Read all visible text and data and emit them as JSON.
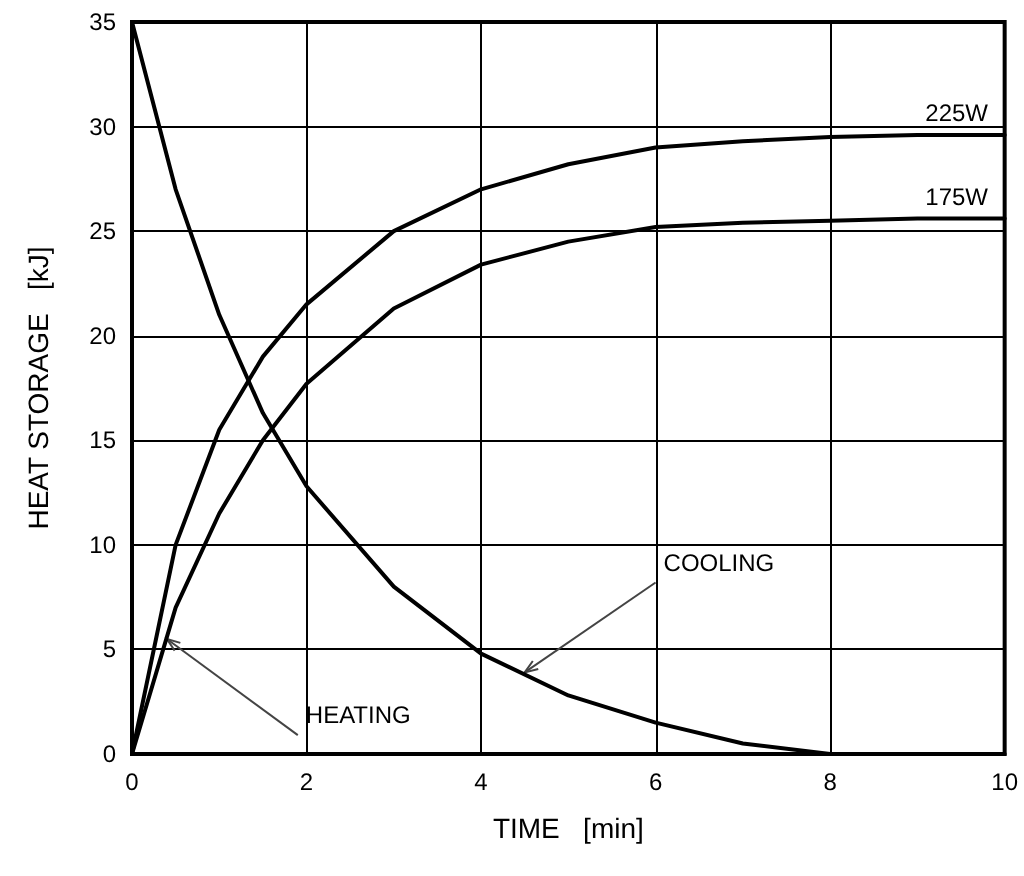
{
  "chart_data": {
    "type": "line",
    "xlabel": "TIME   [min]",
    "ylabel": "HEAT STORAGE   [kJ]",
    "x": [
      0,
      0.5,
      1,
      1.5,
      2,
      3,
      4,
      5,
      6,
      7,
      8,
      9,
      10
    ],
    "series": [
      {
        "name": "225W",
        "color": "#000000",
        "values": [
          0,
          10,
          15.5,
          19,
          21.5,
          25,
          27,
          28.2,
          29,
          29.3,
          29.5,
          29.6,
          29.6
        ]
      },
      {
        "name": "175W",
        "color": "#000000",
        "values": [
          0,
          7,
          11.5,
          15,
          17.7,
          21.3,
          23.4,
          24.5,
          25.2,
          25.4,
          25.5,
          25.6,
          25.6
        ]
      },
      {
        "color": "#000000",
        "x": [
          0,
          0.5,
          1,
          1.5,
          2,
          3,
          4,
          5,
          6,
          7,
          8
        ],
        "values": [
          35,
          27,
          21,
          16.3,
          12.8,
          8,
          4.8,
          2.8,
          1.5,
          0.5,
          0
        ]
      }
    ],
    "annotations": [
      {
        "text": "HEATING",
        "x": 0.4,
        "y": 5.5
      },
      {
        "text": "COOLING",
        "x": 4.5,
        "y": 3.9
      }
    ],
    "xlim": [
      0,
      10
    ],
    "xticks": [
      0,
      2,
      4,
      6,
      8,
      10
    ],
    "ylim": [
      0,
      35
    ],
    "yticks": [
      0,
      5,
      10,
      15,
      20,
      25,
      30,
      35
    ],
    "grid": true,
    "legend": false,
    "marker": "none",
    "line_style": "solid"
  }
}
